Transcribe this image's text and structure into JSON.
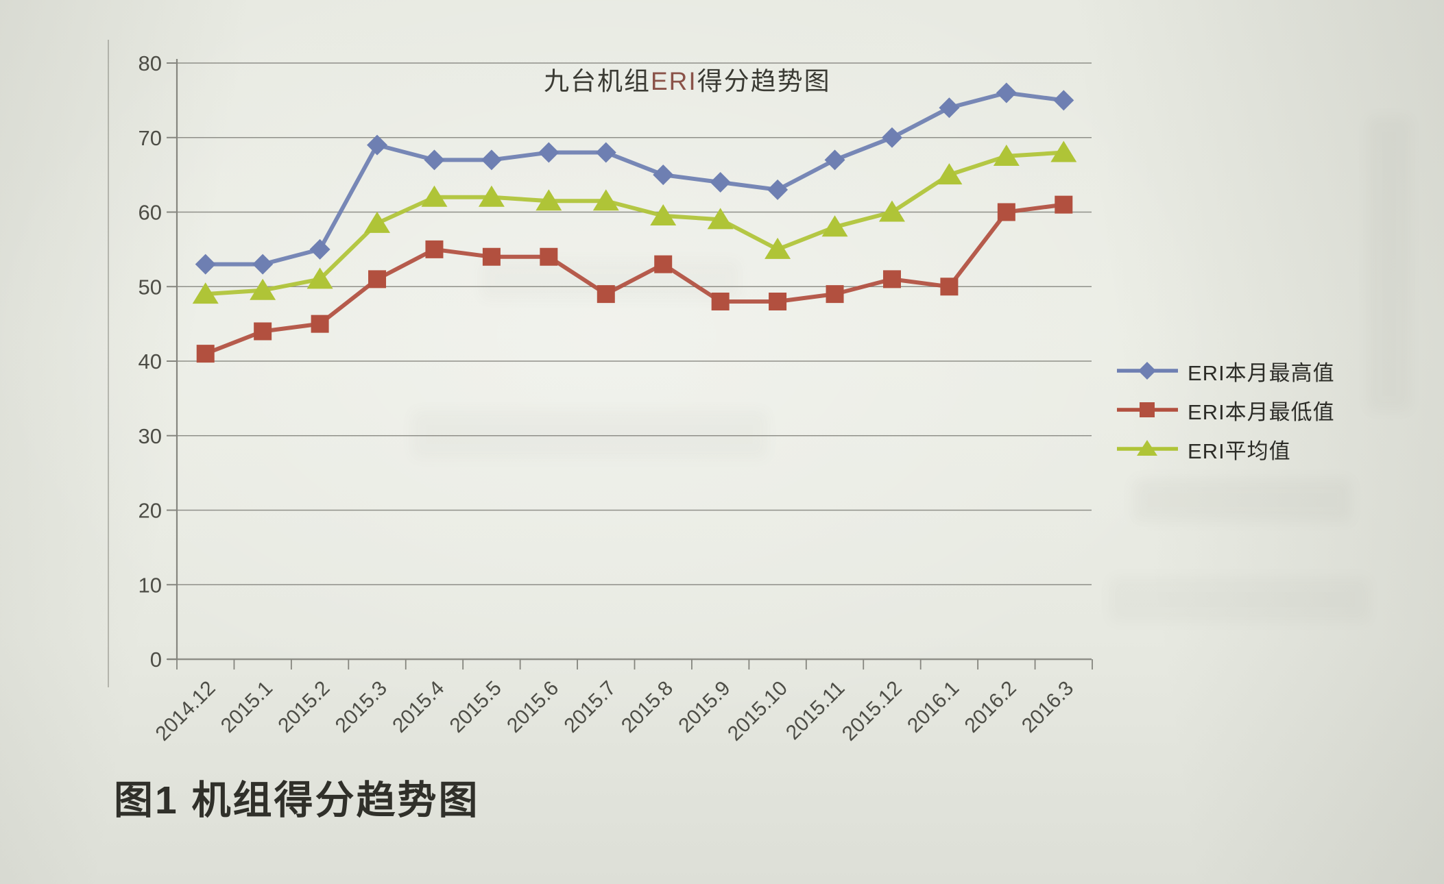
{
  "figure": {
    "caption": "图1 机组得分趋势图"
  },
  "chart_data": {
    "type": "line",
    "title": "九台机组ERI得分趋势图",
    "title_parts": {
      "prefix": "九台机组",
      "eri": "ERI",
      "suffix": "得分趋势图"
    },
    "categories": [
      "2014.12",
      "2015.1",
      "2015.2",
      "2015.3",
      "2015.4",
      "2015.5",
      "2015.6",
      "2015.7",
      "2015.8",
      "2015.9",
      "2015.10",
      "2015.11",
      "2015.12",
      "2016.1",
      "2016.2",
      "2016.3"
    ],
    "series": [
      {
        "name": "ERI本月最高值",
        "marker": "diamond",
        "color": "#6e7fb2",
        "values": [
          53,
          53,
          55,
          69,
          67,
          67,
          68,
          68,
          65,
          64,
          63,
          67,
          70,
          74,
          76,
          75
        ]
      },
      {
        "name": "ERI本月最低值",
        "marker": "square",
        "color": "#b2503f",
        "values": [
          41,
          44,
          45,
          51,
          55,
          54,
          54,
          49,
          53,
          48,
          48,
          49,
          51,
          50,
          60,
          61
        ]
      },
      {
        "name": "ERI平均值",
        "marker": "triangle",
        "color": "#afc437",
        "values": [
          49,
          49.5,
          51,
          58.5,
          62,
          62,
          61.5,
          61.5,
          59.5,
          59,
          55,
          58,
          60,
          65,
          67.5,
          68
        ]
      }
    ],
    "ylim": [
      0,
      80
    ],
    "yticks": [
      0,
      10,
      20,
      30,
      40,
      50,
      60,
      70,
      80
    ],
    "grid": true,
    "legend_position": "right",
    "style": {
      "grid": "#85857e",
      "tick_text": "#4d4d46"
    }
  }
}
